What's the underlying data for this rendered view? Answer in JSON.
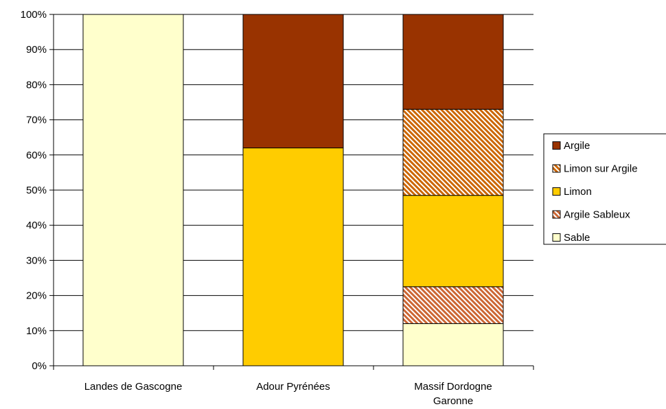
{
  "chart_data": {
    "type": "bar",
    "stacked": true,
    "percent": true,
    "categories": [
      [
        "Landes de Gascogne"
      ],
      [
        "Adour Pyrénées"
      ],
      [
        "Massif Dordogne",
        "Garonne"
      ]
    ],
    "ylim": [
      0,
      100
    ],
    "yticks": [
      0,
      10,
      20,
      30,
      40,
      50,
      60,
      70,
      80,
      90,
      100
    ],
    "ytick_labels": [
      "0%",
      "10%",
      "20%",
      "30%",
      "40%",
      "50%",
      "60%",
      "70%",
      "80%",
      "90%",
      "100%"
    ],
    "grid": true,
    "legend_position": "right",
    "series": [
      {
        "name": "Sable",
        "color": "#FFFFCC",
        "pattern": "solid",
        "values": [
          100,
          0,
          12
        ]
      },
      {
        "name": "Argile Sableux",
        "color": "#CC6633",
        "pattern": "hatch",
        "values": [
          0,
          0,
          10.5
        ]
      },
      {
        "name": "Limon",
        "color": "#FFCC00",
        "pattern": "solid",
        "values": [
          0,
          62,
          26
        ]
      },
      {
        "name": "Limon sur Argile",
        "color": "#CC6600",
        "pattern": "hatch",
        "values": [
          0,
          0,
          24.5
        ]
      },
      {
        "name": "Argile",
        "color": "#993300",
        "pattern": "solid",
        "values": [
          0,
          38,
          27
        ]
      }
    ]
  }
}
